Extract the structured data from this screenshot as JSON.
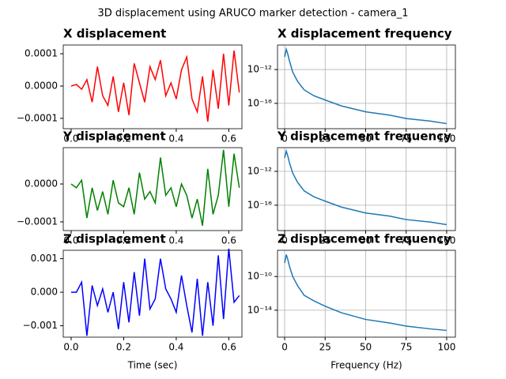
{
  "title": "3D displacement using ARUCO marker detection - camera_1",
  "chart_data": [
    {
      "type": "line",
      "title": "X displacement",
      "color": "#ff0000",
      "grid": false,
      "x": [
        0,
        0.02,
        0.04,
        0.06,
        0.08,
        0.1,
        0.12,
        0.14,
        0.16,
        0.18,
        0.2,
        0.22,
        0.24,
        0.26,
        0.28,
        0.3,
        0.32,
        0.34,
        0.36,
        0.38,
        0.4,
        0.42,
        0.44,
        0.46,
        0.48,
        0.5,
        0.52,
        0.54,
        0.56,
        0.58,
        0.6,
        0.62,
        0.64
      ],
      "values": [
        0,
        5e-06,
        -1e-05,
        2e-05,
        -5e-05,
        6e-05,
        -3e-05,
        -6e-05,
        3e-05,
        -8e-05,
        1e-05,
        -9e-05,
        7e-05,
        1e-05,
        -5e-05,
        6e-05,
        2e-05,
        8e-05,
        -3e-05,
        1e-05,
        -4e-05,
        5e-05,
        9e-05,
        -4e-05,
        -8e-05,
        3e-05,
        -0.00011,
        5e-05,
        -7e-05,
        0.0001,
        -6e-05,
        0.00011,
        -2e-05
      ],
      "xlim": [
        -0.03,
        0.65
      ],
      "xticks": [
        {
          "value": 0,
          "label": "0.0"
        },
        {
          "value": 0.2,
          "label": "0.2"
        },
        {
          "value": 0.4,
          "label": "0.4"
        },
        {
          "value": 0.6,
          "label": "0.6"
        }
      ],
      "ylim": [
        -0.000132,
        0.000127
      ],
      "yticks": [
        {
          "value": -0.0001,
          "label": "−0.0001"
        },
        {
          "value": 0,
          "label": "0.0000"
        },
        {
          "value": 0.0001,
          "label": "0.0001"
        }
      ]
    },
    {
      "type": "line",
      "title": "X displacement frequency",
      "color": "#1f77b4",
      "grid": true,
      "log_y": true,
      "x": [
        0,
        1,
        2,
        3,
        5,
        8,
        12,
        18,
        25,
        35,
        50,
        65,
        75,
        90,
        100
      ],
      "values": [
        3.2e-11,
        2.5e-10,
        6.3e-11,
        1e-11,
        5e-13,
        4e-14,
        4e-15,
        8e-16,
        2.5e-16,
        5e-17,
        1e-17,
        4e-18,
        1.6e-18,
        8e-19,
        4e-19
      ],
      "xlim": [
        -4.4,
        105.4
      ],
      "xticks": [
        0,
        25,
        50,
        75,
        100
      ],
      "ylim": [
        1e-19,
        8e-10
      ],
      "yticks": [
        {
          "value": 1e-16,
          "label": "10⁻¹⁶"
        },
        {
          "value": 1e-12,
          "label": "10⁻¹²"
        }
      ]
    },
    {
      "type": "line",
      "title": "Y displacement",
      "color": "#008000",
      "grid": false,
      "x": [
        0,
        0.02,
        0.04,
        0.06,
        0.08,
        0.1,
        0.12,
        0.14,
        0.16,
        0.18,
        0.2,
        0.22,
        0.24,
        0.26,
        0.28,
        0.3,
        0.32,
        0.34,
        0.36,
        0.38,
        0.4,
        0.42,
        0.44,
        0.46,
        0.48,
        0.5,
        0.52,
        0.54,
        0.56,
        0.58,
        0.6,
        0.62,
        0.64
      ],
      "values": [
        0,
        -1e-05,
        1e-05,
        -9e-05,
        -1e-05,
        -7e-05,
        -2e-05,
        -8e-05,
        1e-05,
        -5e-05,
        -6e-05,
        -1e-05,
        -8e-05,
        3e-05,
        -4e-05,
        -2e-05,
        -5e-05,
        7e-05,
        -3e-05,
        -1e-05,
        -6e-05,
        0,
        -3e-05,
        -9e-05,
        -4e-05,
        -0.00011,
        4e-05,
        -8e-05,
        -3e-05,
        9e-05,
        -6e-05,
        8e-05,
        -1e-05
      ],
      "xlim": [
        -0.03,
        0.65
      ],
      "xticks": [
        {
          "value": 0,
          "label": "0.0"
        },
        {
          "value": 0.2,
          "label": "0.2"
        },
        {
          "value": 0.4,
          "label": "0.4"
        },
        {
          "value": 0.6,
          "label": "0.6"
        }
      ],
      "ylim": [
        -0.000123,
        9.6e-05
      ],
      "yticks": [
        {
          "value": -0.0001,
          "label": "−0.0001"
        },
        {
          "value": 0,
          "label": "0.0000"
        }
      ]
    },
    {
      "type": "line",
      "title": "Y displacement frequency",
      "color": "#1f77b4",
      "grid": true,
      "log_y": true,
      "x": [
        0,
        1,
        2,
        3,
        5,
        8,
        12,
        18,
        25,
        35,
        50,
        65,
        75,
        90,
        100
      ],
      "values": [
        4e-11,
        2.5e-10,
        6e-11,
        1e-11,
        6e-13,
        5e-14,
        5e-15,
        1e-15,
        3e-16,
        6e-17,
        1.2e-17,
        5e-18,
        2e-18,
        1e-18,
        5e-19
      ],
      "xlim": [
        -4.4,
        105.4
      ],
      "xticks": [
        0,
        25,
        50,
        75,
        100
      ],
      "ylim": [
        1e-19,
        6.3e-10
      ],
      "yticks": [
        {
          "value": 1e-16,
          "label": "10⁻¹⁶"
        },
        {
          "value": 1e-12,
          "label": "10⁻¹²"
        }
      ]
    },
    {
      "type": "line",
      "title": "Z displacement",
      "color": "#0000ff",
      "grid": false,
      "xlabel": "Time (sec)",
      "x": [
        0,
        0.02,
        0.04,
        0.06,
        0.08,
        0.1,
        0.12,
        0.14,
        0.16,
        0.18,
        0.2,
        0.22,
        0.24,
        0.26,
        0.28,
        0.3,
        0.32,
        0.34,
        0.36,
        0.38,
        0.4,
        0.42,
        0.44,
        0.46,
        0.48,
        0.5,
        0.52,
        0.54,
        0.56,
        0.58,
        0.6,
        0.62,
        0.64
      ],
      "values": [
        0,
        0,
        0.0003,
        -0.0013,
        0.0002,
        -0.0004,
        0.0001,
        -0.0006,
        0,
        -0.0011,
        0.0003,
        -0.0009,
        0.0006,
        -0.0007,
        0.001,
        -0.0005,
        -0.0002,
        0.001,
        0.0001,
        -0.0002,
        -0.0006,
        0.0005,
        -0.0004,
        -0.0012,
        0.0004,
        -0.0013,
        0.0003,
        -0.001,
        0.0011,
        -0.0008,
        0.0013,
        -0.0003,
        -0.0001
      ],
      "xlim": [
        -0.03,
        0.65
      ],
      "xticks": [
        {
          "value": 0,
          "label": "0.0"
        },
        {
          "value": 0.2,
          "label": "0.2"
        },
        {
          "value": 0.4,
          "label": "0.4"
        },
        {
          "value": 0.6,
          "label": "0.6"
        }
      ],
      "ylim": [
        -0.00134,
        0.00125
      ],
      "yticks": [
        {
          "value": -0.001,
          "label": "−0.001"
        },
        {
          "value": 0,
          "label": "0.000"
        },
        {
          "value": 0.001,
          "label": "0.001"
        }
      ]
    },
    {
      "type": "line",
      "title": "Z displacement frequency",
      "color": "#1f77b4",
      "grid": true,
      "log_y": true,
      "xlabel": "Frequency (Hz)",
      "x": [
        0,
        1,
        2,
        3,
        5,
        8,
        12,
        18,
        25,
        35,
        50,
        65,
        75,
        90,
        100
      ],
      "values": [
        4e-09,
        4e-08,
        1e-08,
        1.6e-09,
        1e-10,
        8e-12,
        6e-13,
        1.3e-13,
        3e-14,
        5e-15,
        8e-16,
        3e-16,
        1.3e-16,
        6e-17,
        4e-17
      ],
      "xlim": [
        -4.4,
        105.4
      ],
      "xticks": [
        0,
        25,
        50,
        75,
        100
      ],
      "ylim": [
        6.3e-18,
        1.3e-07
      ],
      "yticks": [
        {
          "value": 1e-14,
          "label": "10⁻¹⁴"
        },
        {
          "value": 1e-10,
          "label": "10⁻¹⁰"
        }
      ]
    }
  ]
}
